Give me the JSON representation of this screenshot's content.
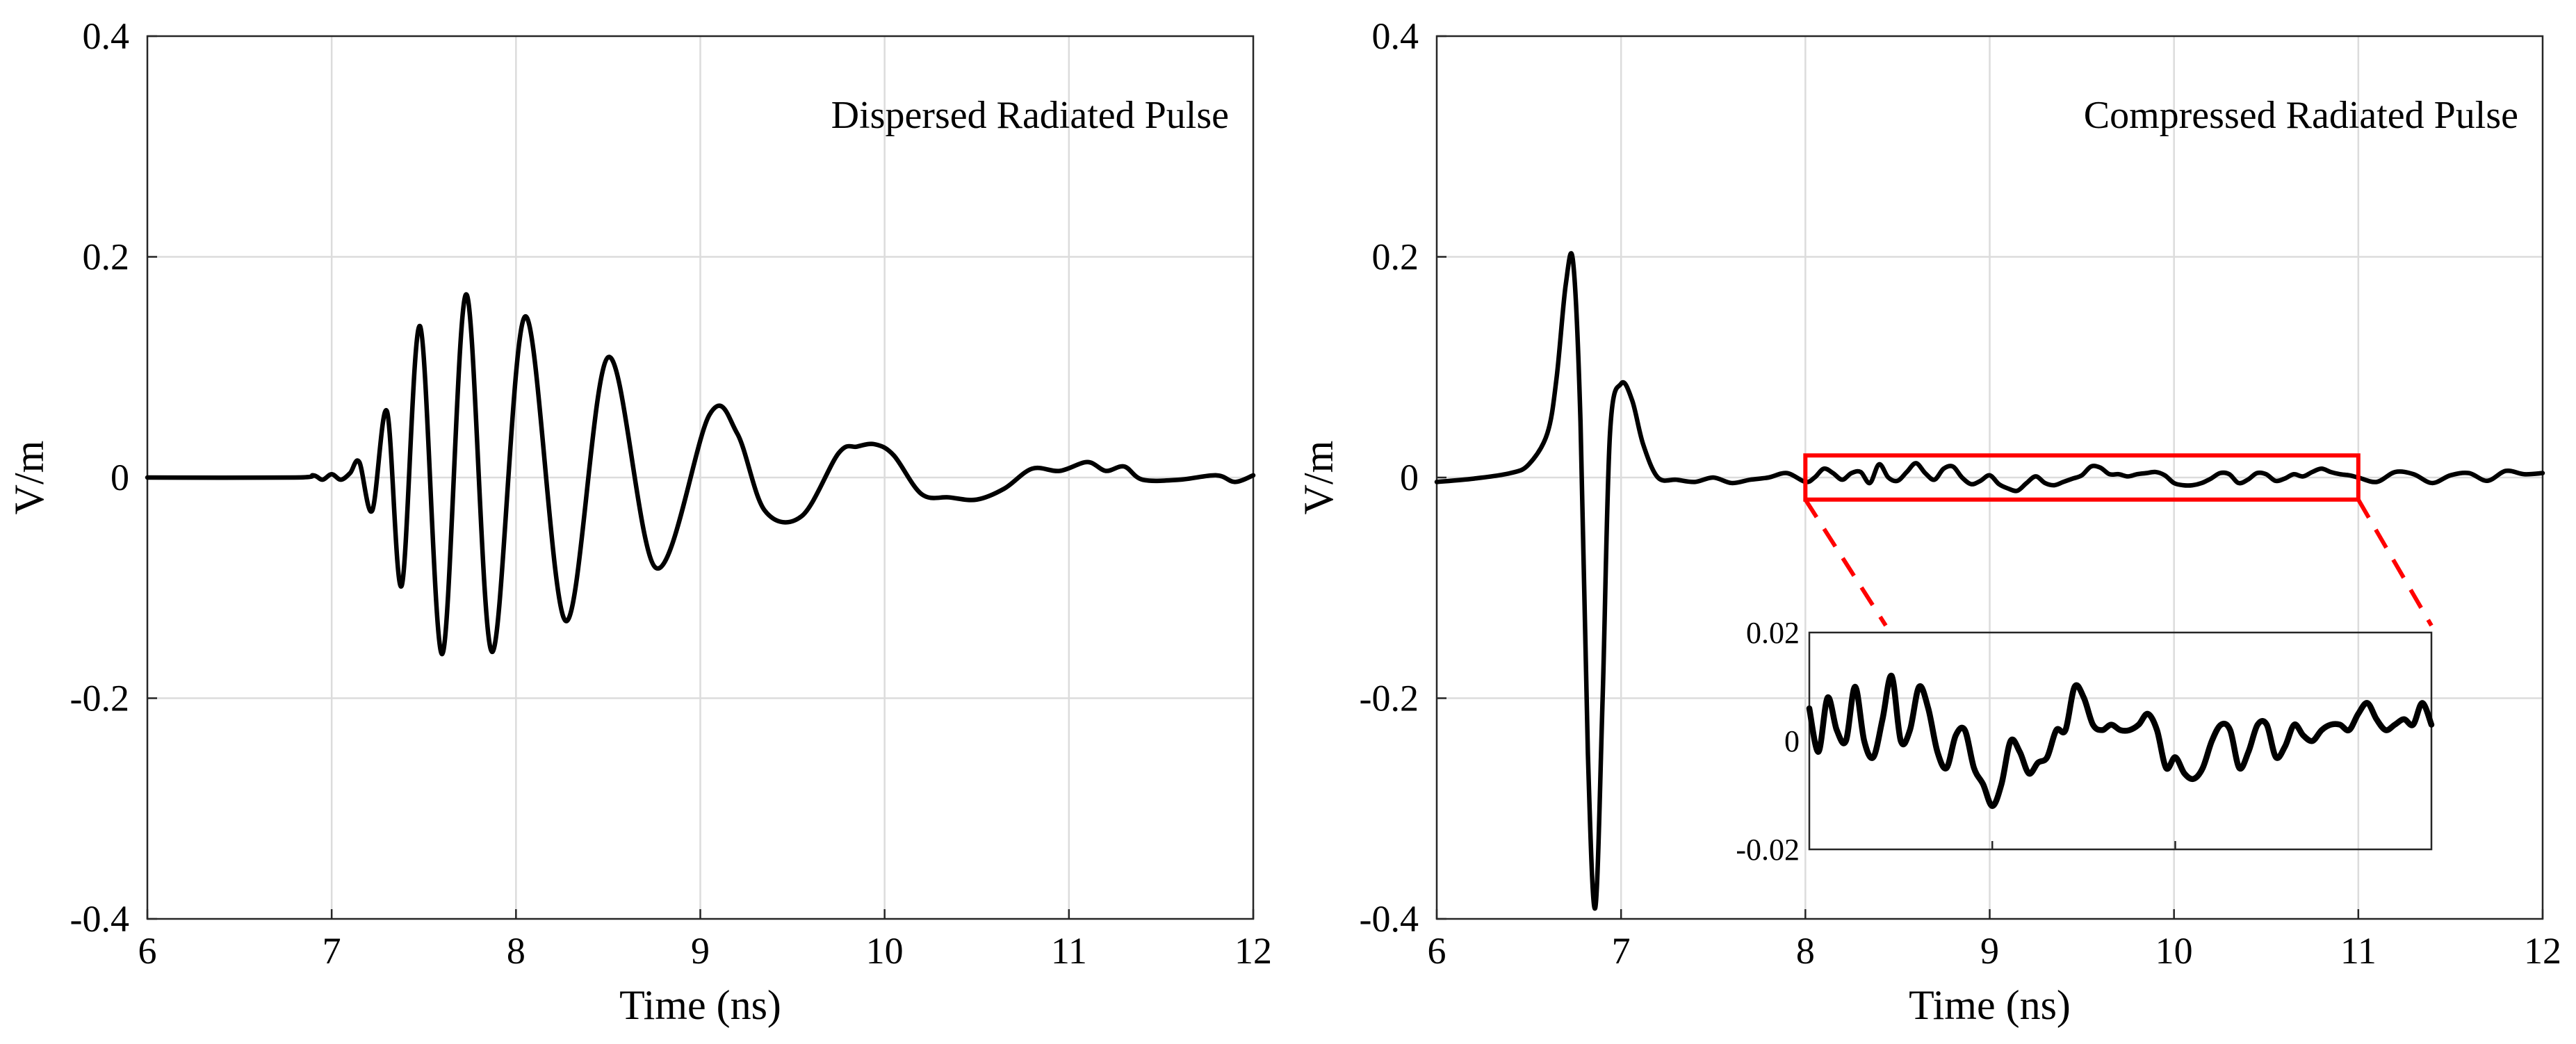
{
  "chart_data": [
    {
      "type": "line",
      "title": "",
      "annotation": "Dispersed Radiated Pulse",
      "xlabel": "Time (ns)",
      "ylabel": "V/m",
      "xlim": [
        6,
        12
      ],
      "ylim": [
        -0.4,
        0.4
      ],
      "xticks": [
        6,
        7,
        8,
        9,
        10,
        11,
        12
      ],
      "xtick_labels": [
        "6",
        "7",
        "8",
        "9",
        "10",
        "11",
        "12"
      ],
      "yticks": [
        -0.4,
        -0.2,
        0,
        0.2,
        0.4
      ],
      "ytick_labels": [
        "-0.4",
        "-0.2",
        "0",
        "0.2",
        "0.4"
      ],
      "grid": true,
      "series": [
        {
          "name": "Dispersed Radiated Pulse",
          "color": "#000000",
          "x": [
            6.0,
            6.8,
            6.9,
            6.95,
            7.0,
            7.05,
            7.1,
            7.15,
            7.22,
            7.3,
            7.38,
            7.48,
            7.6,
            7.73,
            7.87,
            8.05,
            8.27,
            8.5,
            8.76,
            9.05,
            9.2,
            9.35,
            9.55,
            9.75,
            9.85,
            9.95,
            10.05,
            10.2,
            10.35,
            10.5,
            10.65,
            10.8,
            10.95,
            11.1,
            11.2,
            11.3,
            11.4,
            11.6,
            11.8,
            11.9,
            12.0
          ],
          "y": [
            0.0,
            0.0,
            0.002,
            -0.002,
            0.003,
            -0.002,
            0.004,
            0.014,
            -0.03,
            0.06,
            -0.098,
            0.137,
            -0.16,
            0.166,
            -0.158,
            0.146,
            -0.13,
            0.109,
            -0.082,
            0.057,
            0.04,
            -0.03,
            -0.035,
            0.022,
            0.028,
            0.03,
            0.02,
            -0.015,
            -0.018,
            -0.02,
            -0.01,
            0.008,
            0.006,
            0.014,
            0.006,
            0.01,
            -0.002,
            -0.002,
            0.002,
            -0.004,
            0.002
          ]
        }
      ]
    },
    {
      "type": "line",
      "title": "",
      "annotation": "Compressed Radiated Pulse",
      "xlabel": "Time (ns)",
      "ylabel": "V/m",
      "xlim": [
        6,
        12
      ],
      "ylim": [
        -0.4,
        0.4
      ],
      "xticks": [
        6,
        7,
        8,
        9,
        10,
        11,
        12
      ],
      "xtick_labels": [
        "6",
        "7",
        "8",
        "9",
        "10",
        "11",
        "12"
      ],
      "yticks": [
        -0.4,
        -0.2,
        0,
        0.2,
        0.4
      ],
      "ytick_labels": [
        "-0.4",
        "-0.2",
        "0",
        "0.2",
        "0.4"
      ],
      "grid": true,
      "zoom_box": {
        "x": [
          8,
          11
        ],
        "y": [
          -0.02,
          0.02
        ]
      },
      "series": [
        {
          "name": "Compressed Radiated Pulse",
          "color": "#000000",
          "x": [
            6.0,
            6.2,
            6.4,
            6.5,
            6.6,
            6.65,
            6.7,
            6.74,
            6.78,
            6.82,
            6.86,
            6.9,
            6.94,
            7.0,
            7.06,
            7.12,
            7.2,
            7.3,
            7.4,
            7.5,
            7.6,
            7.7,
            7.8,
            7.9,
            8.0,
            8.05,
            8.1,
            8.15,
            8.2,
            8.25,
            8.3,
            8.35,
            8.4,
            8.45,
            8.5,
            8.55,
            8.6,
            8.65,
            8.7,
            8.75,
            8.8,
            8.85,
            8.9,
            8.95,
            9.0,
            9.05,
            9.1,
            9.15,
            9.2,
            9.25,
            9.3,
            9.35,
            9.4,
            9.45,
            9.5,
            9.55,
            9.6,
            9.65,
            9.7,
            9.75,
            9.8,
            9.85,
            9.9,
            9.95,
            10.0,
            10.05,
            10.1,
            10.15,
            10.2,
            10.25,
            10.3,
            10.35,
            10.4,
            10.45,
            10.5,
            10.55,
            10.6,
            10.65,
            10.7,
            10.75,
            10.8,
            10.85,
            10.9,
            10.95,
            11.0,
            11.1,
            11.2,
            11.3,
            11.4,
            11.5,
            11.6,
            11.7,
            11.8,
            11.9,
            12.0
          ],
          "y": [
            -0.004,
            -0.001,
            0.004,
            0.012,
            0.04,
            0.09,
            0.175,
            0.195,
            0.05,
            -0.25,
            -0.39,
            -0.2,
            0.04,
            0.085,
            0.07,
            0.03,
            0.0,
            -0.002,
            -0.004,
            0.0,
            -0.005,
            -0.002,
            0.0,
            0.004,
            -0.004,
            0.0,
            0.008,
            0.004,
            -0.002,
            0.004,
            0.005,
            -0.005,
            0.012,
            0.0,
            -0.003,
            0.005,
            0.013,
            0.004,
            -0.002,
            0.008,
            0.01,
            0.0,
            -0.006,
            -0.003,
            0.002,
            -0.006,
            -0.01,
            -0.012,
            -0.005,
            0.001,
            -0.005,
            -0.007,
            -0.004,
            -0.001,
            0.002,
            0.01,
            0.009,
            0.003,
            0.003,
            0.001,
            0.003,
            0.004,
            0.005,
            0.002,
            -0.005,
            -0.007,
            -0.007,
            -0.005,
            -0.001,
            0.004,
            0.003,
            -0.005,
            -0.002,
            0.004,
            0.003,
            -0.003,
            -0.001,
            0.003,
            0.001,
            0.005,
            0.008,
            0.005,
            0.003,
            0.002,
            0.0,
            -0.004,
            0.005,
            0.003,
            -0.005,
            0.002,
            0.004,
            -0.003,
            0.006,
            0.003,
            0.004
          ]
        }
      ],
      "inset": {
        "xlim": [
          8,
          11.4
        ],
        "ylim": [
          -0.02,
          0.02
        ],
        "xticks": [
          9,
          10
        ],
        "yticks": [
          -0.02,
          0,
          0.02
        ],
        "ytick_labels": [
          "-0.02",
          "0",
          "0.02"
        ],
        "x": [
          8.0,
          8.05,
          8.1,
          8.15,
          8.2,
          8.25,
          8.3,
          8.35,
          8.4,
          8.45,
          8.5,
          8.55,
          8.6,
          8.65,
          8.7,
          8.75,
          8.8,
          8.85,
          8.9,
          8.95,
          9.0,
          9.05,
          9.1,
          9.15,
          9.2,
          9.25,
          9.3,
          9.35,
          9.4,
          9.45,
          9.5,
          9.55,
          9.6,
          9.65,
          9.7,
          9.75,
          9.8,
          9.85,
          9.9,
          9.95,
          10.0,
          10.05,
          10.1,
          10.15,
          10.2,
          10.25,
          10.3,
          10.35,
          10.4,
          10.45,
          10.5,
          10.55,
          10.6,
          10.65,
          10.7,
          10.75,
          10.8,
          10.85,
          10.9,
          10.95,
          11.0,
          11.05,
          11.1,
          11.15,
          11.2,
          11.25,
          11.3,
          11.35,
          11.4
        ],
        "y": [
          0.006,
          -0.002,
          0.008,
          0.002,
          0.0,
          0.01,
          0.0,
          -0.003,
          0.004,
          0.012,
          0.0,
          0.002,
          0.01,
          0.006,
          -0.002,
          -0.005,
          0.001,
          0.002,
          -0.005,
          -0.008,
          -0.012,
          -0.008,
          0.0,
          -0.002,
          -0.006,
          -0.004,
          -0.003,
          0.002,
          0.002,
          0.01,
          0.008,
          0.003,
          0.002,
          0.003,
          0.002,
          0.002,
          0.003,
          0.005,
          0.002,
          -0.005,
          -0.003,
          -0.006,
          -0.007,
          -0.005,
          0.0,
          0.003,
          0.002,
          -0.005,
          -0.002,
          0.003,
          0.003,
          -0.003,
          -0.001,
          0.003,
          0.001,
          0.0,
          0.002,
          0.003,
          0.003,
          0.002,
          0.005,
          0.007,
          0.004,
          0.002,
          0.003,
          0.004,
          0.003,
          0.007,
          0.003
        ]
      }
    }
  ]
}
